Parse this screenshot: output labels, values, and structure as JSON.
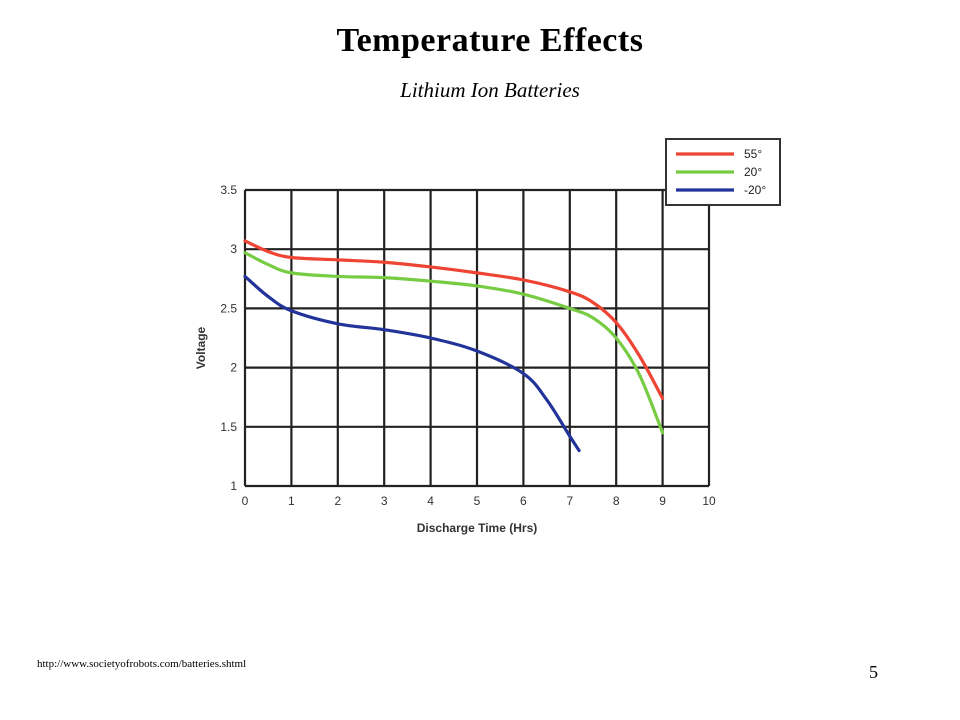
{
  "slide": {
    "title": "Temperature Effects",
    "subtitle": "Lithium Ion Batteries",
    "source": "http://www.societyofrobots.com/batteries.shtml",
    "page_number": "5"
  },
  "chart_data": {
    "type": "line",
    "title": "",
    "xlabel": "Discharge Time (Hrs)",
    "ylabel": "Voltage",
    "xlim": [
      0,
      10
    ],
    "ylim": [
      1,
      3.5
    ],
    "x_ticks": [
      "0",
      "1",
      "2",
      "3",
      "4",
      "5",
      "6",
      "7",
      "8",
      "9",
      "10"
    ],
    "y_ticks": [
      "1",
      "1.5",
      "2",
      "2.5",
      "3",
      "3.5"
    ],
    "grid": true,
    "legend_position": "top-right",
    "series": [
      {
        "name": "55°",
        "color": "#ee4433",
        "points": [
          [
            0,
            3.07
          ],
          [
            0.5,
            2.98
          ],
          [
            1,
            2.93
          ],
          [
            2,
            2.91
          ],
          [
            3,
            2.89
          ],
          [
            4,
            2.85
          ],
          [
            5,
            2.8
          ],
          [
            6,
            2.74
          ],
          [
            7,
            2.64
          ],
          [
            7.5,
            2.55
          ],
          [
            8,
            2.38
          ],
          [
            8.5,
            2.1
          ],
          [
            9,
            1.74
          ]
        ]
      },
      {
        "name": "20°",
        "color": "#77cc44",
        "points": [
          [
            0,
            2.97
          ],
          [
            0.5,
            2.87
          ],
          [
            1,
            2.8
          ],
          [
            2,
            2.77
          ],
          [
            3,
            2.76
          ],
          [
            4,
            2.73
          ],
          [
            5,
            2.69
          ],
          [
            6,
            2.62
          ],
          [
            7,
            2.5
          ],
          [
            7.5,
            2.42
          ],
          [
            8,
            2.25
          ],
          [
            8.5,
            1.94
          ],
          [
            9,
            1.45
          ]
        ]
      },
      {
        "name": "-20°",
        "color": "#223399",
        "points": [
          [
            0,
            2.77
          ],
          [
            0.5,
            2.6
          ],
          [
            1,
            2.48
          ],
          [
            2,
            2.37
          ],
          [
            3,
            2.32
          ],
          [
            4,
            2.25
          ],
          [
            5,
            2.14
          ],
          [
            6,
            1.95
          ],
          [
            6.5,
            1.73
          ],
          [
            7,
            1.42
          ],
          [
            7.2,
            1.3
          ]
        ]
      }
    ]
  }
}
